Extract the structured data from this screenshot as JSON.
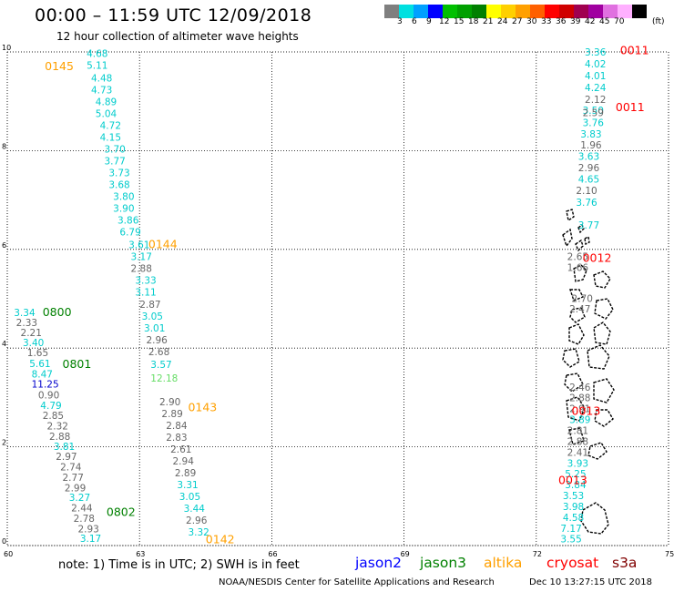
{
  "header": {
    "title": "00:00 – 11:59 UTC 12/09/2018",
    "subtitle": "12 hour collection of altimeter wave heights"
  },
  "color_scale": {
    "colors": [
      "#7f7f7f",
      "#00e0e0",
      "#00a0ff",
      "#0000ff",
      "#00c000",
      "#00a000",
      "#008000",
      "#ffff00",
      "#ffd000",
      "#ffa000",
      "#ff6000",
      "#ff0000",
      "#d00000",
      "#a00050",
      "#a000a0",
      "#e070e0",
      "#ffb0ff",
      "#000000"
    ],
    "labels": [
      "3",
      "6",
      "9",
      "12",
      "15",
      "18",
      "21",
      "24",
      "27",
      "30",
      "33",
      "36",
      "39",
      "42",
      "45",
      "70"
    ],
    "unit": "(ft)"
  },
  "map": {
    "lon_range": [
      60,
      75
    ],
    "lat_range": [
      0,
      10
    ],
    "x_ticks": [
      "60",
      "63",
      "66",
      "69",
      "72",
      "75"
    ],
    "y_ticks": [
      "10",
      "8",
      "6",
      "4",
      "2",
      "0"
    ],
    "grid": "dotted",
    "icon": "coastline-icon"
  },
  "tracks": [
    {
      "satellite": "altika",
      "pass": "0145",
      "label_lon": 60.85,
      "label_lat": 9.63
    },
    {
      "satellite": "altika",
      "pass": "0144",
      "label_lon": 63.2,
      "label_lat": 6.02
    },
    {
      "satellite": "altika",
      "pass": "0143",
      "label_lon": 64.1,
      "label_lat": 2.72
    },
    {
      "satellite": "altika",
      "pass": "0142",
      "label_lon": 64.5,
      "label_lat": 0.05
    },
    {
      "satellite": "jason3",
      "pass": "0800",
      "label_lon": 60.8,
      "label_lat": 4.65
    },
    {
      "satellite": "jason3",
      "pass": "0801",
      "label_lon": 61.25,
      "label_lat": 3.6
    },
    {
      "satellite": "jason3",
      "pass": "0802",
      "label_lon": 62.25,
      "label_lat": 0.6
    },
    {
      "satellite": "cryosat",
      "pass": "0011",
      "label_lon": 73.9,
      "label_lat": 9.95
    },
    {
      "satellite": "cryosat",
      "pass": "0011",
      "label_lon": 73.8,
      "label_lat": 8.8
    },
    {
      "satellite": "cryosat",
      "pass": "0012",
      "label_lon": 73.05,
      "label_lat": 5.75
    },
    {
      "satellite": "cryosat",
      "pass": "0013",
      "label_lon": 72.8,
      "label_lat": 2.65
    },
    {
      "satellite": "cryosat",
      "pass": "0013",
      "label_lon": 72.5,
      "label_lat": 1.25
    }
  ],
  "points": [
    {
      "v": "4.68",
      "c": "cyan",
      "lon": 61.8,
      "lat": 9.9
    },
    {
      "v": "5.11",
      "c": "cyan",
      "lon": 61.8,
      "lat": 9.66
    },
    {
      "v": "4.48",
      "c": "cyan",
      "lon": 61.9,
      "lat": 9.4
    },
    {
      "v": "4.73",
      "c": "cyan",
      "lon": 61.9,
      "lat": 9.16
    },
    {
      "v": "4.89",
      "c": "cyan",
      "lon": 62.0,
      "lat": 8.92
    },
    {
      "v": "5.04",
      "c": "cyan",
      "lon": 62.0,
      "lat": 8.68
    },
    {
      "v": "4.72",
      "c": "cyan",
      "lon": 62.1,
      "lat": 8.44
    },
    {
      "v": "4.15",
      "c": "cyan",
      "lon": 62.1,
      "lat": 8.2
    },
    {
      "v": "3.70",
      "c": "cyan",
      "lon": 62.2,
      "lat": 7.96
    },
    {
      "v": "3.77",
      "c": "cyan",
      "lon": 62.2,
      "lat": 7.72
    },
    {
      "v": "3.73",
      "c": "cyan",
      "lon": 62.3,
      "lat": 7.48
    },
    {
      "v": "3.68",
      "c": "cyan",
      "lon": 62.3,
      "lat": 7.24
    },
    {
      "v": "3.80",
      "c": "cyan",
      "lon": 62.4,
      "lat": 7.0
    },
    {
      "v": "3.90",
      "c": "cyan",
      "lon": 62.4,
      "lat": 6.76
    },
    {
      "v": "3.86",
      "c": "cyan",
      "lon": 62.5,
      "lat": 6.52
    },
    {
      "v": "6.79",
      "c": "cyan",
      "lon": 62.55,
      "lat": 6.28
    },
    {
      "v": "3.61",
      "c": "cyan",
      "lon": 62.75,
      "lat": 6.02
    },
    {
      "v": "3.17",
      "c": "cyan",
      "lon": 62.8,
      "lat": 5.78
    },
    {
      "v": "2.88",
      "c": "gray",
      "lon": 62.8,
      "lat": 5.54
    },
    {
      "v": "3.33",
      "c": "cyan",
      "lon": 62.9,
      "lat": 5.3
    },
    {
      "v": "3.11",
      "c": "cyan",
      "lon": 62.9,
      "lat": 5.06
    },
    {
      "v": "2.87",
      "c": "gray",
      "lon": 63.0,
      "lat": 4.82
    },
    {
      "v": "3.05",
      "c": "cyan",
      "lon": 63.05,
      "lat": 4.58
    },
    {
      "v": "3.01",
      "c": "cyan",
      "lon": 63.1,
      "lat": 4.34
    },
    {
      "v": "2.96",
      "c": "gray",
      "lon": 63.15,
      "lat": 4.1
    },
    {
      "v": "2.68",
      "c": "gray",
      "lon": 63.2,
      "lat": 3.86
    },
    {
      "v": "3.57",
      "c": "cyan",
      "lon": 63.25,
      "lat": 3.6
    },
    {
      "v": "12.18",
      "c": "lightgreen",
      "lon": 63.25,
      "lat": 3.32
    },
    {
      "v": "2.90",
      "c": "gray",
      "lon": 63.45,
      "lat": 2.84
    },
    {
      "v": "2.89",
      "c": "gray",
      "lon": 63.5,
      "lat": 2.6
    },
    {
      "v": "2.84",
      "c": "gray",
      "lon": 63.6,
      "lat": 2.36
    },
    {
      "v": "2.83",
      "c": "gray",
      "lon": 63.6,
      "lat": 2.12
    },
    {
      "v": "2.61",
      "c": "gray",
      "lon": 63.7,
      "lat": 1.88
    },
    {
      "v": "2.94",
      "c": "gray",
      "lon": 63.75,
      "lat": 1.64
    },
    {
      "v": "2.89",
      "c": "gray",
      "lon": 63.8,
      "lat": 1.4
    },
    {
      "v": "3.31",
      "c": "cyan",
      "lon": 63.85,
      "lat": 1.16
    },
    {
      "v": "3.05",
      "c": "cyan",
      "lon": 63.9,
      "lat": 0.92
    },
    {
      "v": "3.44",
      "c": "cyan",
      "lon": 64.0,
      "lat": 0.68
    },
    {
      "v": "2.96",
      "c": "gray",
      "lon": 64.05,
      "lat": 0.44
    },
    {
      "v": "3.32",
      "c": "cyan",
      "lon": 64.1,
      "lat": 0.2
    },
    {
      "v": "3.34",
      "c": "cyan",
      "lon": 60.15,
      "lat": 4.65
    },
    {
      "v": "2.33",
      "c": "gray",
      "lon": 60.2,
      "lat": 4.45
    },
    {
      "v": "2.21",
      "c": "gray",
      "lon": 60.3,
      "lat": 4.24
    },
    {
      "v": "3.40",
      "c": "cyan",
      "lon": 60.35,
      "lat": 4.04
    },
    {
      "v": "1.65",
      "c": "gray",
      "lon": 60.45,
      "lat": 3.84
    },
    {
      "v": "5.61",
      "c": "cyan",
      "lon": 60.5,
      "lat": 3.62
    },
    {
      "v": "8.47",
      "c": "cyan",
      "lon": 60.55,
      "lat": 3.4
    },
    {
      "v": "11.25",
      "c": "blue",
      "lon": 60.55,
      "lat": 3.2
    },
    {
      "v": "0.90",
      "c": "gray",
      "lon": 60.7,
      "lat": 2.98
    },
    {
      "v": "4.79",
      "c": "cyan",
      "lon": 60.75,
      "lat": 2.77
    },
    {
      "v": "2.85",
      "c": "gray",
      "lon": 60.8,
      "lat": 2.56
    },
    {
      "v": "2.32",
      "c": "gray",
      "lon": 60.9,
      "lat": 2.35
    },
    {
      "v": "2.88",
      "c": "gray",
      "lon": 60.95,
      "lat": 2.14
    },
    {
      "v": "3.81",
      "c": "cyan",
      "lon": 61.05,
      "lat": 1.94
    },
    {
      "v": "2.97",
      "c": "gray",
      "lon": 61.1,
      "lat": 1.73
    },
    {
      "v": "2.74",
      "c": "gray",
      "lon": 61.2,
      "lat": 1.52
    },
    {
      "v": "2.77",
      "c": "gray",
      "lon": 61.25,
      "lat": 1.31
    },
    {
      "v": "2.99",
      "c": "gray",
      "lon": 61.3,
      "lat": 1.1
    },
    {
      "v": "3.27",
      "c": "cyan",
      "lon": 61.4,
      "lat": 0.9
    },
    {
      "v": "2.44",
      "c": "gray",
      "lon": 61.45,
      "lat": 0.69
    },
    {
      "v": "2.78",
      "c": "gray",
      "lon": 61.5,
      "lat": 0.48
    },
    {
      "v": "2.93",
      "c": "gray",
      "lon": 61.6,
      "lat": 0.27
    },
    {
      "v": "3.17",
      "c": "cyan",
      "lon": 61.65,
      "lat": 0.07
    },
    {
      "v": "3.36",
      "c": "cyan",
      "lon": 73.1,
      "lat": 9.93
    },
    {
      "v": "4.02",
      "c": "cyan",
      "lon": 73.1,
      "lat": 9.69
    },
    {
      "v": "4.01",
      "c": "cyan",
      "lon": 73.1,
      "lat": 9.45
    },
    {
      "v": "4.24",
      "c": "cyan",
      "lon": 73.1,
      "lat": 9.21
    },
    {
      "v": "2.12",
      "c": "gray",
      "lon": 73.1,
      "lat": 8.97
    },
    {
      "v": "3.50",
      "c": "cyan",
      "lon": 73.05,
      "lat": 8.75
    },
    {
      "v": "2.59",
      "c": "gray",
      "lon": 73.05,
      "lat": 8.7
    },
    {
      "v": "3.76",
      "c": "cyan",
      "lon": 73.05,
      "lat": 8.5
    },
    {
      "v": "3.83",
      "c": "cyan",
      "lon": 73.0,
      "lat": 8.27
    },
    {
      "v": "1.96",
      "c": "gray",
      "lon": 73.0,
      "lat": 8.04
    },
    {
      "v": "3.63",
      "c": "cyan",
      "lon": 72.95,
      "lat": 7.81
    },
    {
      "v": "2.96",
      "c": "gray",
      "lon": 72.95,
      "lat": 7.58
    },
    {
      "v": "4.65",
      "c": "cyan",
      "lon": 72.95,
      "lat": 7.35
    },
    {
      "v": "2.10",
      "c": "gray",
      "lon": 72.9,
      "lat": 7.12
    },
    {
      "v": "3.76",
      "c": "cyan",
      "lon": 72.9,
      "lat": 6.88
    },
    {
      "v": "3.77",
      "c": "cyan",
      "lon": 72.95,
      "lat": 6.42
    },
    {
      "v": "2.65",
      "c": "gray",
      "lon": 72.7,
      "lat": 5.78
    },
    {
      "v": "1.66",
      "c": "gray",
      "lon": 72.7,
      "lat": 5.56
    },
    {
      "v": "2.70",
      "c": "gray",
      "lon": 72.8,
      "lat": 4.94
    },
    {
      "v": "2.47",
      "c": "gray",
      "lon": 72.75,
      "lat": 4.72
    },
    {
      "v": "2.46",
      "c": "gray",
      "lon": 72.75,
      "lat": 3.14
    },
    {
      "v": "2.88",
      "c": "gray",
      "lon": 72.75,
      "lat": 2.92
    },
    {
      "v": "2.91",
      "c": "gray",
      "lon": 72.75,
      "lat": 2.7
    },
    {
      "v": "3.89",
      "c": "cyan",
      "lon": 72.75,
      "lat": 2.48
    },
    {
      "v": "2.81",
      "c": "gray",
      "lon": 72.7,
      "lat": 2.26
    },
    {
      "v": "2.88",
      "c": "gray",
      "lon": 72.7,
      "lat": 2.04
    },
    {
      "v": "2.41",
      "c": "gray",
      "lon": 72.7,
      "lat": 1.82
    },
    {
      "v": "3.93",
      "c": "cyan",
      "lon": 72.7,
      "lat": 1.6
    },
    {
      "v": "5.25",
      "c": "cyan",
      "lon": 72.65,
      "lat": 1.38
    },
    {
      "v": "3.84",
      "c": "cyan",
      "lon": 72.65,
      "lat": 1.16
    },
    {
      "v": "3.53",
      "c": "cyan",
      "lon": 72.6,
      "lat": 0.94
    },
    {
      "v": "3.98",
      "c": "cyan",
      "lon": 72.6,
      "lat": 0.72
    },
    {
      "v": "4.58",
      "c": "cyan",
      "lon": 72.6,
      "lat": 0.5
    },
    {
      "v": "7.17",
      "c": "cyan",
      "lon": 72.55,
      "lat": 0.28
    },
    {
      "v": "3.55",
      "c": "cyan",
      "lon": 72.55,
      "lat": 0.06
    }
  ],
  "legend": {
    "note": "note:  1) Time is in UTC;  2) SWH is in feet",
    "satellites": [
      {
        "name": "jason2",
        "color": "#0000ff"
      },
      {
        "name": "jason3",
        "color": "#008000"
      },
      {
        "name": "altika",
        "color": "#ffa000"
      },
      {
        "name": "cryosat",
        "color": "#ff0000"
      },
      {
        "name": "s3a",
        "color": "#800000"
      }
    ]
  },
  "footer": {
    "center": "NOAA/NESDIS Center for Satellite Applications and Research",
    "stamp": "Dec 10 13:27:15 UTC 2018"
  }
}
